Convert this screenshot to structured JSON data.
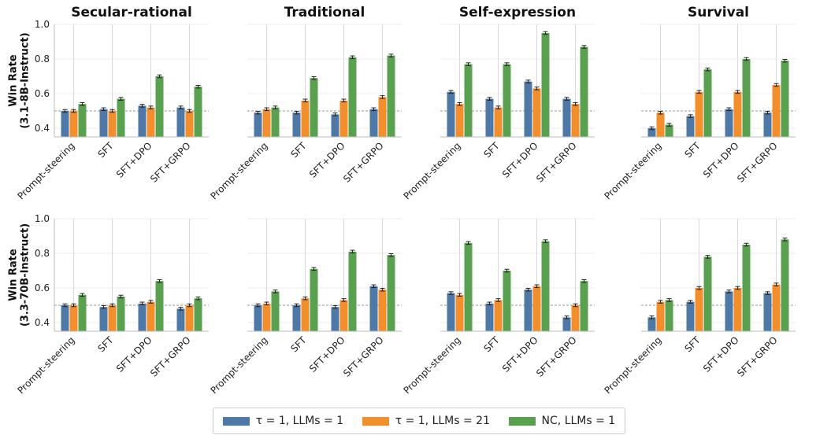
{
  "chart_data": {
    "type": "bar",
    "row_labels": [
      "Win Rate\n(3.1-8B-Instruct)",
      "Win Rate\n(3.3-70B-Instruct)"
    ],
    "col_titles": [
      "Secular-rational",
      "Traditional",
      "Self-expression",
      "Survival"
    ],
    "categories": [
      "Prompt-steering",
      "SFT",
      "SFT+DPO",
      "SFT+GRPO"
    ],
    "ylim": [
      0.35,
      1.0
    ],
    "yticks": [
      0.4,
      0.6,
      0.8,
      1.0
    ],
    "ytick_labels": [
      "0.4",
      "0.6",
      "0.8",
      "1.0"
    ],
    "reference_line": 0.5,
    "grid": true,
    "legend_position": "bottom-center",
    "series": [
      {
        "name": "τ = 1, LLMs = 1",
        "color": "#4e79a7"
      },
      {
        "name": "τ = 1, LLMs = 21",
        "color": "#f28e2b"
      },
      {
        "name": "NC, LLMs = 1",
        "color": "#59a14f"
      }
    ],
    "panels": [
      {
        "row": 0,
        "col": 0,
        "values": [
          [
            0.5,
            0.51,
            0.53,
            0.52
          ],
          [
            0.5,
            0.5,
            0.52,
            0.5
          ],
          [
            0.54,
            0.57,
            0.7,
            0.64
          ]
        ]
      },
      {
        "row": 0,
        "col": 1,
        "values": [
          [
            0.49,
            0.49,
            0.48,
            0.51
          ],
          [
            0.51,
            0.56,
            0.56,
            0.58
          ],
          [
            0.52,
            0.69,
            0.81,
            0.82
          ]
        ]
      },
      {
        "row": 0,
        "col": 2,
        "values": [
          [
            0.61,
            0.57,
            0.67,
            0.57
          ],
          [
            0.54,
            0.52,
            0.63,
            0.54
          ],
          [
            0.77,
            0.77,
            0.95,
            0.87
          ]
        ]
      },
      {
        "row": 0,
        "col": 3,
        "values": [
          [
            0.4,
            0.47,
            0.51,
            0.49
          ],
          [
            0.49,
            0.61,
            0.61,
            0.65
          ],
          [
            0.42,
            0.74,
            0.8,
            0.79
          ]
        ]
      },
      {
        "row": 1,
        "col": 0,
        "values": [
          [
            0.5,
            0.49,
            0.51,
            0.48
          ],
          [
            0.5,
            0.5,
            0.52,
            0.5
          ],
          [
            0.56,
            0.55,
            0.64,
            0.54
          ]
        ]
      },
      {
        "row": 1,
        "col": 1,
        "values": [
          [
            0.5,
            0.5,
            0.49,
            0.61
          ],
          [
            0.51,
            0.54,
            0.53,
            0.59
          ],
          [
            0.58,
            0.71,
            0.81,
            0.79
          ]
        ]
      },
      {
        "row": 1,
        "col": 2,
        "values": [
          [
            0.57,
            0.51,
            0.59,
            0.43
          ],
          [
            0.56,
            0.53,
            0.61,
            0.5
          ],
          [
            0.86,
            0.7,
            0.87,
            0.64
          ]
        ]
      },
      {
        "row": 1,
        "col": 3,
        "values": [
          [
            0.43,
            0.52,
            0.58,
            0.57
          ],
          [
            0.52,
            0.6,
            0.6,
            0.62
          ],
          [
            0.53,
            0.78,
            0.85,
            0.88
          ]
        ]
      }
    ]
  }
}
